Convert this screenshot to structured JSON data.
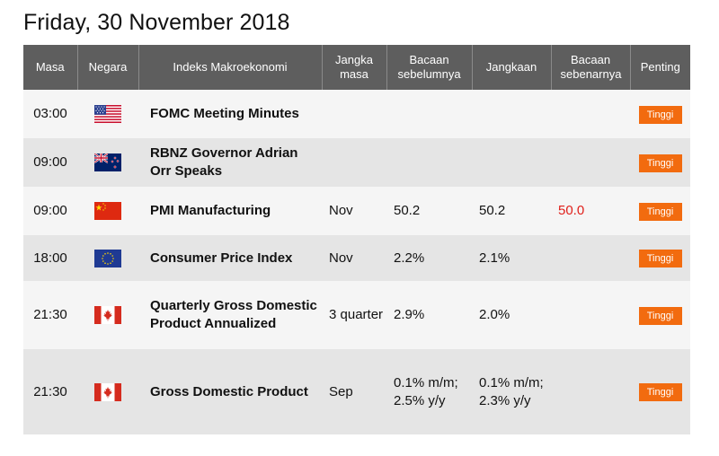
{
  "page_title": "Friday, 30 November 2018",
  "table": {
    "headers": {
      "time": "Masa",
      "country": "Negara",
      "event": "Indeks Makroekonomi",
      "period": "Jangka masa",
      "previous": "Bacaan sebelumnya",
      "forecast": "Jangkaan",
      "actual": "Bacaan sebenarnya",
      "importance": "Penting"
    },
    "rows": [
      {
        "time": "03:00",
        "flag": "us-flag-icon",
        "event": "FOMC Meeting Minutes",
        "period": "",
        "previous": "",
        "forecast": "",
        "actual": "",
        "importance": "Tinggi"
      },
      {
        "time": "09:00",
        "flag": "nz-flag-icon",
        "event": "RBNZ Governor Adrian Orr Speaks",
        "period": "",
        "previous": "",
        "forecast": "",
        "actual": "",
        "importance": "Tinggi"
      },
      {
        "time": "09:00",
        "flag": "cn-flag-icon",
        "event": "PMI Manufacturing",
        "period": "Nov",
        "previous": "50.2",
        "forecast": "50.2",
        "actual": "50.0",
        "importance": "Tinggi"
      },
      {
        "time": "18:00",
        "flag": "eu-flag-icon",
        "event": "Consumer Price Index",
        "period": "Nov",
        "previous": "2.2%",
        "forecast": "2.1%",
        "actual": "",
        "importance": "Tinggi"
      },
      {
        "time": "21:30",
        "flag": "ca-flag-icon",
        "event": "Quarterly Gross Domestic Product Annualized",
        "period": "3 quarter",
        "previous": "2.9%",
        "forecast": "2.0%",
        "actual": "",
        "importance": "Tinggi"
      },
      {
        "time": "21:30",
        "flag": "ca-flag-icon",
        "event": "Gross Domestic Product",
        "period": "Sep",
        "previous": "0.1% m/m; 2.5% y/y",
        "forecast": "0.1% m/m; 2.3% y/y",
        "actual": "",
        "importance": "Tinggi"
      }
    ]
  },
  "colors": {
    "header_bg": "#5e5e5e",
    "badge": "#f26b0f",
    "actual_text": "#e0201b"
  }
}
